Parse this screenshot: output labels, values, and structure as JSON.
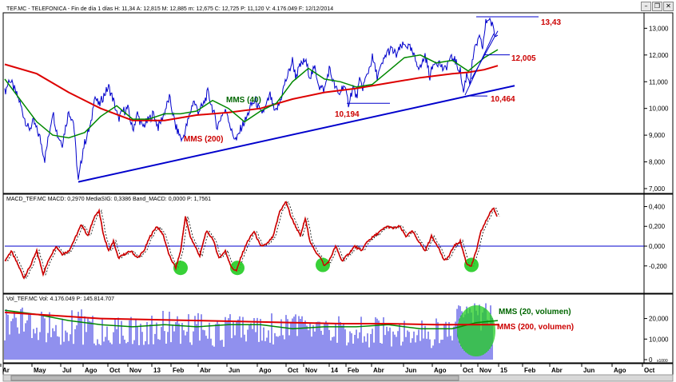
{
  "window": {
    "minimize_glyph": "–",
    "restore_glyph": "❐",
    "close_glyph": "✕"
  },
  "header": {
    "price": "TEF.MC - TELEFONICA - Fin de día 1 días H: 11,34 A: 12,815 M: 12,885 m: 12,675 C: 12,725 P: 11,120 V: 4.176.049 F: 12/12/2014",
    "macd": "MACD_TEF.MC MACD: 0,2970 MediaSIG: 0,3386 Band_MACD: 0,0000 P: 1,7561",
    "vol": "Vol_TEF.MC Vol: 4.176.049 P: 145.814.707"
  },
  "colors": {
    "price": "#0000cc",
    "mms200": "#dd0000",
    "mms40": "#008800",
    "trend": "#0000cc",
    "highlight": "#22cc22",
    "macd": "#cc0000"
  },
  "chart_data": [
    {
      "type": "line",
      "name": "price",
      "ylim": [
        7.0,
        13.4
      ],
      "y_ticks": [
        "13,000",
        "12,000",
        "11,000",
        "10,000",
        "9,000",
        "8,000",
        "7,000"
      ],
      "y_tick_values": [
        13,
        12,
        11,
        10,
        9,
        8,
        7
      ],
      "series": [
        {
          "name": "TEF.MC",
          "x": [
            0,
            6,
            12,
            18,
            24,
            30,
            36,
            44,
            50,
            54,
            60,
            66,
            72,
            80,
            86,
            92,
            98,
            104,
            108,
            112,
            118,
            124,
            130,
            136,
            142,
            148,
            154,
            160,
            166,
            172,
            178,
            186,
            192,
            198,
            206,
            214,
            222,
            230,
            236,
            242,
            248,
            254,
            260,
            266,
            272,
            278,
            284,
            290,
            296,
            302,
            308,
            314,
            320,
            326,
            332,
            338,
            344,
            350,
            356,
            360,
            364,
            370,
            376,
            382,
            388,
            394,
            400,
            406,
            412,
            418,
            424,
            430,
            436,
            440,
            444,
            448,
            454,
            460,
            466,
            472,
            478,
            484,
            490,
            496,
            502,
            508,
            514,
            520,
            526,
            532,
            538,
            544,
            550,
            556,
            562,
            566,
            570,
            574,
            578,
            582,
            586,
            590,
            594,
            598,
            602,
            606,
            610,
            614,
            617
          ],
          "y": [
            10.6,
            11.1,
            10.7,
            10.3,
            9.7,
            9.2,
            9.5,
            8.9,
            8.1,
            8.8,
            9.9,
            9.0,
            8.7,
            9.9,
            9.5,
            7.25,
            8.5,
            9.1,
            9.4,
            10.5,
            10.1,
            10.5,
            10.8,
            10.3,
            9.6,
            9.9,
            10.0,
            9.2,
            9.8,
            9.3,
            9.5,
            9.8,
            9.3,
            9.7,
            10.4,
            9.3,
            8.8,
            9.6,
            10.3,
            9.9,
            10.1,
            10.6,
            10.0,
            9.3,
            9.8,
            9.9,
            9.1,
            8.8,
            9.3,
            9.6,
            10.1,
            10.3,
            9.8,
            10.0,
            10.5,
            9.8,
            10.2,
            10.9,
            11.4,
            11.8,
            11.2,
            11.6,
            11.8,
            11.2,
            11.5,
            10.8,
            10.7,
            11.5,
            10.9,
            10.5,
            10.9,
            10.2,
            10.8,
            10.4,
            11.0,
            10.8,
            11.3,
            11.9,
            11.2,
            11.6,
            12.1,
            12.2,
            12.0,
            12.3,
            12.4,
            12.2,
            11.8,
            11.5,
            12.0,
            11.2,
            11.8,
            11.7,
            11.4,
            11.8,
            11.9,
            11.6,
            11.4,
            10.6,
            11.3,
            11.0,
            11.9,
            12.4,
            12.6,
            12.3,
            13.2,
            13.4,
            13.1,
            12.7,
            12.73
          ]
        },
        {
          "name": "MMS (200)",
          "x": [
            0,
            40,
            80,
            120,
            160,
            200,
            240,
            280,
            320,
            360,
            400,
            440,
            480,
            520,
            560,
            580,
            600,
            617
          ],
          "y": [
            11.65,
            11.3,
            10.6,
            10.0,
            9.55,
            9.55,
            9.75,
            9.85,
            10.0,
            10.35,
            10.6,
            10.75,
            10.95,
            11.15,
            11.3,
            11.35,
            11.45,
            11.6
          ]
        },
        {
          "name": "MMS (40)",
          "x": [
            0,
            20,
            40,
            60,
            80,
            100,
            120,
            140,
            160,
            180,
            200,
            220,
            240,
            260,
            280,
            300,
            320,
            340,
            360,
            380,
            400,
            420,
            440,
            460,
            480,
            500,
            520,
            540,
            560,
            580,
            600,
            617
          ],
          "y": [
            11.1,
            10.3,
            9.5,
            9.0,
            8.9,
            9.1,
            9.7,
            10.1,
            9.6,
            9.6,
            9.8,
            9.8,
            9.9,
            10.3,
            10.0,
            9.5,
            9.9,
            10.2,
            11.0,
            11.5,
            11.1,
            11.0,
            10.8,
            10.9,
            11.4,
            11.9,
            12.0,
            11.7,
            11.8,
            11.4,
            11.9,
            12.2
          ]
        }
      ],
      "trendlines": [
        {
          "x": [
            92,
            638
          ],
          "y": [
            7.25,
            10.85
          ]
        }
      ],
      "levels": [
        {
          "label": "13,43",
          "x": [
            590,
            668
          ],
          "y": 13.43
        },
        {
          "label": "12,005",
          "x": [
            600,
            632
          ],
          "y": 12.005
        },
        {
          "label": "10,464",
          "x": [
            582,
            604
          ],
          "y": 10.464
        },
        {
          "label": "10,194",
          "x": [
            428,
            482
          ],
          "y": 10.194
        }
      ],
      "annotations": [
        "MMS (40)",
        "MMS (200)",
        "10,194",
        "13,43",
        "12,005",
        "10,464"
      ]
    },
    {
      "type": "line",
      "name": "macd",
      "ylim": [
        -0.42,
        0.42
      ],
      "y_ticks": [
        "0,400",
        "0,200",
        "0,000",
        "-0,200"
      ],
      "y_tick_values": [
        0.4,
        0.2,
        0.0,
        -0.2
      ],
      "series": [
        {
          "name": "MACD",
          "x": [
            0,
            8,
            16,
            24,
            32,
            40,
            48,
            56,
            64,
            72,
            80,
            88,
            96,
            104,
            112,
            118,
            124,
            130,
            136,
            142,
            150,
            158,
            166,
            174,
            182,
            190,
            198,
            206,
            214,
            220,
            226,
            232,
            238,
            244,
            252,
            260,
            268,
            276,
            284,
            290,
            296,
            304,
            312,
            320,
            328,
            336,
            344,
            352,
            358,
            364,
            370,
            376,
            382,
            388,
            394,
            400,
            406,
            414,
            422,
            430,
            438,
            446,
            454,
            462,
            470,
            478,
            486,
            494,
            502,
            510,
            518,
            526,
            534,
            542,
            550,
            556,
            562,
            570,
            578,
            584,
            590,
            596,
            602,
            608,
            612,
            616
          ],
          "y": [
            -0.15,
            -0.05,
            -0.18,
            -0.32,
            -0.2,
            -0.05,
            -0.28,
            -0.12,
            0.0,
            -0.08,
            -0.05,
            0.08,
            0.22,
            0.1,
            0.3,
            0.35,
            0.1,
            -0.05,
            0.05,
            -0.12,
            -0.08,
            -0.05,
            -0.12,
            -0.05,
            0.1,
            0.2,
            0.12,
            -0.1,
            -0.22,
            -0.05,
            0.3,
            0.1,
            0.0,
            -0.1,
            0.15,
            0.08,
            -0.12,
            -0.05,
            -0.22,
            -0.25,
            -0.1,
            0.05,
            0.15,
            0.0,
            0.02,
            0.1,
            0.35,
            0.45,
            0.3,
            0.2,
            0.1,
            0.28,
            0.05,
            -0.05,
            -0.1,
            -0.2,
            -0.15,
            0.0,
            -0.15,
            -0.08,
            0.0,
            -0.05,
            0.05,
            0.1,
            0.15,
            0.2,
            0.18,
            0.2,
            0.1,
            0.15,
            0.05,
            -0.05,
            0.1,
            0.0,
            -0.15,
            -0.1,
            0.0,
            0.05,
            -0.18,
            -0.2,
            -0.05,
            0.15,
            0.25,
            0.35,
            0.38,
            0.3
          ]
        }
      ],
      "highlights": [
        {
          "x": 220,
          "y": -0.22
        },
        {
          "x": 291,
          "y": -0.22
        },
        {
          "x": 398,
          "y": -0.19
        },
        {
          "x": 584,
          "y": -0.19
        }
      ]
    },
    {
      "type": "bar",
      "name": "volume",
      "ylim": [
        0,
        28
      ],
      "y_ticks": [
        "20,000",
        "10,000",
        "0"
      ],
      "y_tick_values": [
        20,
        10,
        0
      ],
      "unit_note": "x1000",
      "series": [
        {
          "name": "MMS (20, volumen)",
          "x": [
            0,
            40,
            80,
            120,
            160,
            200,
            240,
            280,
            320,
            360,
            400,
            440,
            480,
            520,
            560,
            590,
            617
          ],
          "y": [
            24,
            22,
            19,
            17,
            16,
            17,
            16,
            17,
            17,
            15,
            16,
            16,
            17,
            15,
            15,
            18,
            19
          ]
        },
        {
          "name": "MMS (200, volumen)",
          "x": [
            0,
            60,
            120,
            180,
            240,
            300,
            360,
            420,
            480,
            540,
            617
          ],
          "y": [
            23,
            21.5,
            20,
            19.5,
            19,
            18.5,
            18,
            17.5,
            17.5,
            17,
            17
          ]
        }
      ],
      "annotations": [
        "MMS (20, volumen)",
        "MMS (200, volumen)"
      ]
    }
  ],
  "x_axis": {
    "labels": [
      "Ar",
      "May",
      "Jul",
      "Ago",
      "Oct",
      "Nov",
      "13",
      "Feb",
      "Abr",
      "Jun",
      "Ago",
      "Oct",
      "Nov",
      "14",
      "Feb",
      "Abr",
      "Jun",
      "Ago",
      "Oct",
      "Nov",
      "15",
      "Feb",
      "Abr",
      "Jun",
      "Ago",
      "Oct"
    ],
    "positions": [
      1,
      40,
      76,
      104,
      135,
      160,
      190,
      214,
      248,
      284,
      322,
      358,
      380,
      412,
      433,
      465,
      505,
      541,
      577,
      598,
      624,
      654,
      688,
      728,
      766,
      804
    ]
  }
}
